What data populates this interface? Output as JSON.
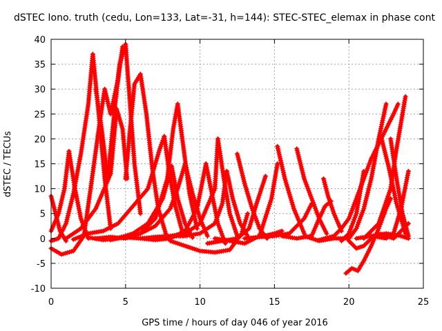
{
  "chart_data": {
    "type": "scatter",
    "title": "dSTEC Iono. truth (cedu, Lon=133, Lat=-31, h=144): STEC-STEC_elemax in phase cont",
    "xlabel": "GPS time / hours of day 046 of year 2016",
    "ylabel": "dSTEC  / TECUs",
    "xlim": [
      0,
      25
    ],
    "ylim": [
      -10,
      40
    ],
    "x_ticks": [
      "0",
      "5",
      "10",
      "15",
      "20",
      "25"
    ],
    "y_ticks": [
      "-10",
      "-5",
      "0",
      "5",
      "10",
      "15",
      "20",
      "25",
      "30",
      "35",
      "40"
    ],
    "grid": true,
    "marker": "+",
    "color": "#ff0000",
    "series": [
      {
        "x": [
          0.0,
          0.3,
          0.6,
          1.0
        ],
        "y": [
          8.5,
          5.0,
          1.5,
          -0.5
        ]
      },
      {
        "x": [
          0.0,
          0.5,
          1.0,
          1.5,
          2.0,
          2.5,
          2.8
        ],
        "y": [
          -0.5,
          0.0,
          3.0,
          9.0,
          17.0,
          27.0,
          37.0
        ]
      },
      {
        "x": [
          2.8,
          3.2,
          3.6,
          4.0
        ],
        "y": [
          37.0,
          25.0,
          12.0,
          2.0
        ]
      },
      {
        "x": [
          0.0,
          0.5,
          0.9,
          1.2
        ],
        "y": [
          1.5,
          5.0,
          10.0,
          17.5
        ]
      },
      {
        "x": [
          1.2,
          1.6,
          2.0,
          2.5
        ],
        "y": [
          17.5,
          10.0,
          4.0,
          0.0
        ]
      },
      {
        "x": [
          0.0,
          0.7,
          1.5,
          2.2,
          2.7
        ],
        "y": [
          -2.0,
          -3.2,
          -2.5,
          0.5,
          11.0
        ]
      },
      {
        "x": [
          2.7,
          3.2,
          3.6,
          4.0,
          4.5,
          4.8
        ],
        "y": [
          11.0,
          22.0,
          30.0,
          25.0,
          32.0,
          38.5
        ]
      },
      {
        "x": [
          3.0,
          3.4,
          3.8
        ],
        "y": [
          30.0,
          22.0,
          12.0
        ]
      },
      {
        "x": [
          3.8,
          4.2,
          4.6,
          5.0
        ],
        "y": [
          12.0,
          24.0,
          35.0,
          39.0
        ]
      },
      {
        "x": [
          5.0,
          5.3,
          5.6,
          6.0
        ],
        "y": [
          39.0,
          27.0,
          15.0,
          5.0
        ]
      },
      {
        "x": [
          1.0,
          2.0,
          3.0,
          4.0
        ],
        "y": [
          0.0,
          2.0,
          6.0,
          13.0
        ]
      },
      {
        "x": [
          4.0,
          4.4,
          4.8,
          5.1
        ],
        "y": [
          13.0,
          26.0,
          22.0,
          12.0
        ]
      },
      {
        "x": [
          5.0,
          5.3,
          5.6,
          6.0,
          6.4
        ],
        "y": [
          12.0,
          22.0,
          31.0,
          33.0,
          25.0
        ]
      },
      {
        "x": [
          6.4,
          6.8,
          7.2,
          7.7
        ],
        "y": [
          25.0,
          14.0,
          6.0,
          1.0
        ]
      },
      {
        "x": [
          1.5,
          2.5,
          3.5,
          4.5,
          5.5,
          6.5,
          7.3,
          7.6
        ],
        "y": [
          -0.2,
          1.0,
          1.5,
          3.0,
          6.5,
          10.0,
          18.0,
          20.5
        ]
      },
      {
        "x": [
          7.6,
          7.9,
          8.3,
          8.8
        ],
        "y": [
          20.5,
          14.0,
          7.0,
          1.5
        ]
      },
      {
        "x": [
          2.5,
          3.5,
          4.5,
          5.5,
          6.5,
          7.5,
          8.1
        ],
        "y": [
          0.2,
          -0.3,
          0.0,
          1.0,
          3.0,
          8.0,
          14.5
        ]
      },
      {
        "x": [
          8.1,
          8.5,
          9.0,
          9.5
        ],
        "y": [
          14.5,
          8.0,
          3.0,
          0.2
        ]
      },
      {
        "x": [
          3.0,
          4.0,
          5.0,
          6.0,
          7.0,
          7.8,
          8.2,
          8.5
        ],
        "y": [
          0.0,
          0.3,
          0.0,
          1.0,
          4.0,
          12.0,
          22.0,
          27.0
        ]
      },
      {
        "x": [
          8.5,
          8.9,
          9.3,
          9.8
        ],
        "y": [
          27.0,
          18.0,
          9.0,
          2.0
        ]
      },
      {
        "x": [
          4.0,
          5.0,
          6.0,
          7.0,
          8.0,
          8.5,
          9.0
        ],
        "y": [
          -0.3,
          0.5,
          1.0,
          2.5,
          6.0,
          10.0,
          15.0
        ]
      },
      {
        "x": [
          9.0,
          9.5,
          10.0,
          10.5
        ],
        "y": [
          15.0,
          9.0,
          4.0,
          0.5
        ]
      },
      {
        "x": [
          5.0,
          6.0,
          7.0,
          8.0,
          9.0,
          10.0,
          11.0,
          11.2
        ],
        "y": [
          0.2,
          0.0,
          0.3,
          0.5,
          1.0,
          3.0,
          10.0,
          20.0
        ]
      },
      {
        "x": [
          11.2,
          11.6,
          12.0,
          12.5
        ],
        "y": [
          20.0,
          12.0,
          5.0,
          0.5
        ]
      },
      {
        "x": [
          6.0,
          7.0,
          8.0,
          9.0,
          9.8,
          10.4
        ],
        "y": [
          0.0,
          -0.3,
          0.0,
          1.5,
          6.0,
          15.0
        ]
      },
      {
        "x": [
          10.4,
          10.8,
          11.2,
          11.7
        ],
        "y": [
          15.0,
          9.0,
          3.0,
          -1.0
        ]
      },
      {
        "x": [
          7.0,
          8.0,
          9.0,
          10.0,
          11.0,
          11.5,
          11.8
        ],
        "y": [
          0.0,
          0.5,
          0.5,
          1.0,
          3.0,
          7.0,
          13.5
        ]
      },
      {
        "x": [
          11.8,
          12.2,
          12.7,
          13.3
        ],
        "y": [
          13.5,
          8.0,
          3.0,
          0.0
        ]
      },
      {
        "x": [
          8.0,
          9.0,
          10.0,
          11.0,
          12.0,
          12.8,
          13.2
        ],
        "y": [
          -0.5,
          -1.5,
          -2.5,
          -2.8,
          -2.3,
          1.0,
          5.0
        ]
      },
      {
        "x": [
          12.5,
          13.0,
          13.5,
          14.0,
          14.5
        ],
        "y": [
          17.0,
          11.0,
          6.0,
          2.0,
          0.0
        ]
      },
      {
        "x": [
          10.5,
          11.5,
          12.5,
          13.3,
          13.8,
          14.4
        ],
        "y": [
          -1.0,
          -0.5,
          0.0,
          2.0,
          7.0,
          12.5
        ]
      },
      {
        "x": [
          11.0,
          12.0,
          13.0,
          14.0,
          14.8,
          15.2
        ],
        "y": [
          0.0,
          -0.5,
          -1.0,
          0.5,
          8.0,
          15.0
        ]
      },
      {
        "x": [
          15.2,
          15.7,
          16.3,
          17.0
        ],
        "y": [
          18.5,
          12.0,
          6.0,
          1.0
        ]
      },
      {
        "x": [
          13.0,
          14.0,
          15.0,
          15.5
        ],
        "y": [
          0.0,
          0.3,
          1.0,
          1.5
        ]
      },
      {
        "x": [
          16.5,
          17.0,
          17.5,
          18.0,
          18.5
        ],
        "y": [
          18.0,
          12.0,
          8.0,
          4.0,
          1.0
        ]
      },
      {
        "x": [
          14.0,
          15.0,
          16.0,
          17.0,
          17.5
        ],
        "y": [
          0.3,
          0.5,
          1.0,
          4.0,
          7.0
        ]
      },
      {
        "x": [
          15.5,
          16.5,
          17.5,
          18.0,
          18.4,
          18.8
        ],
        "y": [
          0.5,
          0.0,
          0.5,
          4.0,
          6.5,
          7.5
        ]
      },
      {
        "x": [
          18.3,
          18.6,
          19.0,
          19.5
        ],
        "y": [
          12.0,
          8.5,
          5.0,
          1.5
        ]
      },
      {
        "x": [
          17.0,
          18.0,
          19.0,
          20.0,
          20.5,
          21.0,
          21.5,
          22.0,
          22.5
        ],
        "y": [
          0.5,
          -0.5,
          0.0,
          0.0,
          2.0,
          6.0,
          12.0,
          20.0,
          27.0
        ]
      },
      {
        "x": [
          18.0,
          19.0,
          19.5,
          20.0,
          20.5,
          21.0,
          21.5,
          22.0,
          22.5,
          23.0,
          23.3
        ],
        "y": [
          -0.3,
          0.5,
          2.0,
          4.0,
          8.0,
          12.0,
          16.0,
          19.0,
          22.0,
          25.0,
          27.0
        ]
      },
      {
        "x": [
          19.5,
          20.0,
          20.5,
          21.0
        ],
        "y": [
          -0.5,
          1.0,
          5.0,
          13.5
        ]
      },
      {
        "x": [
          19.8,
          20.2,
          20.6,
          21.0,
          21.5,
          22.0,
          22.5,
          22.8
        ],
        "y": [
          -7.0,
          -6.0,
          -6.5,
          -4.5,
          -1.5,
          2.0,
          6.0,
          8.0
        ]
      },
      {
        "x": [
          20.0,
          20.5,
          21.0,
          21.5,
          22.0,
          22.5,
          23.0,
          23.5,
          24.0
        ],
        "y": [
          -0.5,
          -2.0,
          -1.5,
          0.0,
          1.0,
          0.5,
          0.0,
          1.5,
          3.0
        ]
      },
      {
        "x": [
          21.0,
          22.0,
          22.8,
          23.2,
          23.8
        ],
        "y": [
          0.0,
          3.0,
          10.0,
          18.0,
          28.5
        ]
      },
      {
        "x": [
          22.2,
          22.7,
          23.2,
          23.8
        ],
        "y": [
          20.0,
          14.0,
          7.0,
          1.0
        ]
      },
      {
        "x": [
          22.8,
          23.2,
          23.6,
          24.0
        ],
        "y": [
          20.0,
          12.0,
          5.0,
          0.5
        ]
      },
      {
        "x": [
          21.5,
          22.5,
          23.0,
          23.5,
          24.0
        ],
        "y": [
          0.5,
          0.0,
          1.0,
          6.0,
          13.5
        ]
      },
      {
        "x": [
          20.5,
          21.5,
          22.5,
          23.5,
          24.0
        ],
        "y": [
          0.0,
          0.5,
          1.0,
          0.5,
          0.0
        ]
      }
    ]
  }
}
